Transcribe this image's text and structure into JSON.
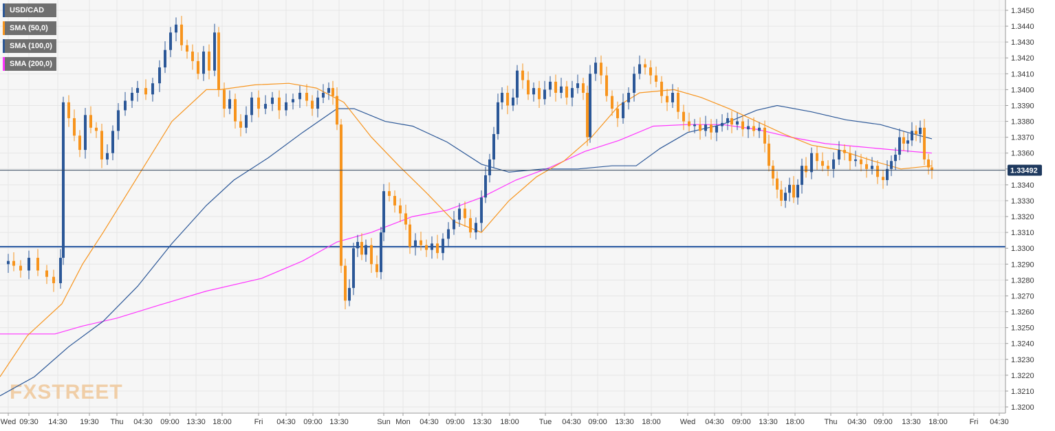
{
  "legend": {
    "items": [
      {
        "label": "USD/CAD",
        "color": "#2b5797"
      },
      {
        "label": "SMA (50,0)",
        "color": "#f7941d"
      },
      {
        "label": "SMA (100,0)",
        "color": "#2b5797"
      },
      {
        "label": "SMA (200,0)",
        "color": "#ff33ff"
      }
    ]
  },
  "watermark": {
    "part1": "FX",
    "part2": "STREET",
    "color": "#f0c89a"
  },
  "colors": {
    "up": "#2b5797",
    "down": "#f7941d",
    "grid": "#e6e6e6",
    "background": "#f6f6f6",
    "hline": "#1d4f9c"
  },
  "chart_data": {
    "type": "candlestick",
    "symbol": "USD/CAD",
    "ylim": [
      1.3195,
      1.3455
    ],
    "y_ticks": [
      "1.3450",
      "1.3440",
      "1.3430",
      "1.3420",
      "1.3410",
      "1.3400",
      "1.3390",
      "1.3380",
      "1.3370",
      "1.3360",
      "1.3350",
      "1.3340",
      "1.3330",
      "1.3320",
      "1.3310",
      "1.3300",
      "1.3290",
      "1.3280",
      "1.3270",
      "1.3260",
      "1.3250",
      "1.3240",
      "1.3230",
      "1.3220",
      "1.3210",
      "1.3200"
    ],
    "x_ticks": [
      "Wed",
      "09:30",
      "14:30",
      "19:30",
      "Thu",
      "04:30",
      "09:00",
      "13:30",
      "18:00",
      "Fri",
      "04:30",
      "09:00",
      "13:30",
      "Sun",
      "Mon",
      "04:30",
      "09:00",
      "13:30",
      "18:00",
      "Tue",
      "04:30",
      "09:00",
      "13:30",
      "18:00",
      "Wed",
      "04:30",
      "09:00",
      "13:30",
      "18:00",
      "Thu",
      "04:30",
      "09:00",
      "13:30",
      "18:00",
      "Fri",
      "04:30"
    ],
    "current_price": {
      "label": "1.33492",
      "value": 1.33492
    },
    "horizontal_line": 1.3301,
    "sma50": [
      [
        0,
        1.3219
      ],
      [
        40,
        1.3245
      ],
      [
        90,
        1.3265
      ],
      [
        120,
        1.329
      ],
      [
        150,
        1.331
      ],
      [
        200,
        1.3345
      ],
      [
        250,
        1.338
      ],
      [
        300,
        1.34
      ],
      [
        320,
        1.34
      ],
      [
        370,
        1.3403
      ],
      [
        420,
        1.3404
      ],
      [
        460,
        1.3401
      ],
      [
        500,
        1.3392
      ],
      [
        540,
        1.337
      ],
      [
        580,
        1.3352
      ],
      [
        620,
        1.3335
      ],
      [
        660,
        1.3317
      ],
      [
        700,
        1.331
      ],
      [
        740,
        1.333
      ],
      [
        780,
        1.3345
      ],
      [
        820,
        1.3355
      ],
      [
        860,
        1.337
      ],
      [
        900,
        1.339
      ],
      [
        930,
        1.3398
      ],
      [
        980,
        1.34
      ],
      [
        1020,
        1.3395
      ],
      [
        1060,
        1.3388
      ],
      [
        1100,
        1.338
      ],
      [
        1140,
        1.3372
      ],
      [
        1180,
        1.3365
      ],
      [
        1220,
        1.3362
      ],
      [
        1270,
        1.3355
      ],
      [
        1310,
        1.335
      ],
      [
        1355,
        1.3352
      ]
    ],
    "sma100": [
      [
        0,
        1.3207
      ],
      [
        50,
        1.3219
      ],
      [
        100,
        1.3238
      ],
      [
        150,
        1.3254
      ],
      [
        200,
        1.3276
      ],
      [
        250,
        1.3303
      ],
      [
        300,
        1.3327
      ],
      [
        340,
        1.3343
      ],
      [
        390,
        1.3357
      ],
      [
        440,
        1.3373
      ],
      [
        490,
        1.3388
      ],
      [
        515,
        1.3388
      ],
      [
        560,
        1.338
      ],
      [
        600,
        1.3377
      ],
      [
        650,
        1.3367
      ],
      [
        700,
        1.3353
      ],
      [
        740,
        1.3348
      ],
      [
        790,
        1.335
      ],
      [
        840,
        1.335
      ],
      [
        890,
        1.3352
      ],
      [
        925,
        1.3352
      ],
      [
        960,
        1.3363
      ],
      [
        1000,
        1.3373
      ],
      [
        1050,
        1.3378
      ],
      [
        1100,
        1.3387
      ],
      [
        1130,
        1.339
      ],
      [
        1180,
        1.3386
      ],
      [
        1230,
        1.3381
      ],
      [
        1280,
        1.3378
      ],
      [
        1320,
        1.3373
      ],
      [
        1355,
        1.3369
      ]
    ],
    "sma200": [
      [
        0,
        1.3246
      ],
      [
        80,
        1.3246
      ],
      [
        120,
        1.3251
      ],
      [
        170,
        1.3256
      ],
      [
        230,
        1.3264
      ],
      [
        300,
        1.3273
      ],
      [
        380,
        1.3281
      ],
      [
        440,
        1.3292
      ],
      [
        490,
        1.3304
      ],
      [
        540,
        1.331
      ],
      [
        600,
        1.332
      ],
      [
        650,
        1.3324
      ],
      [
        700,
        1.3332
      ],
      [
        750,
        1.3343
      ],
      [
        800,
        1.3351
      ],
      [
        850,
        1.3361
      ],
      [
        900,
        1.3368
      ],
      [
        950,
        1.3377
      ],
      [
        1000,
        1.3378
      ],
      [
        1050,
        1.3378
      ],
      [
        1100,
        1.3375
      ],
      [
        1150,
        1.337
      ],
      [
        1200,
        1.3366
      ],
      [
        1250,
        1.3364
      ],
      [
        1300,
        1.3362
      ],
      [
        1355,
        1.336
      ]
    ],
    "price": [
      [
        0,
        1.329
      ],
      [
        12,
        1.3292
      ],
      [
        20,
        1.3289
      ],
      [
        30,
        1.3286
      ],
      [
        42,
        1.3294
      ],
      [
        55,
        1.3286
      ],
      [
        68,
        1.3282
      ],
      [
        78,
        1.3278
      ],
      [
        88,
        1.3294
      ],
      [
        92,
        1.3392
      ],
      [
        100,
        1.3382
      ],
      [
        108,
        1.3371
      ],
      [
        116,
        1.3362
      ],
      [
        124,
        1.3384
      ],
      [
        132,
        1.3376
      ],
      [
        140,
        1.3374
      ],
      [
        148,
        1.3356
      ],
      [
        156,
        1.336
      ],
      [
        164,
        1.3374
      ],
      [
        172,
        1.3387
      ],
      [
        182,
        1.3393
      ],
      [
        192,
        1.3398
      ],
      [
        200,
        1.3401
      ],
      [
        212,
        1.3397
      ],
      [
        222,
        1.3404
      ],
      [
        232,
        1.3414
      ],
      [
        240,
        1.3425
      ],
      [
        248,
        1.3436
      ],
      [
        256,
        1.3441
      ],
      [
        264,
        1.3428
      ],
      [
        272,
        1.3424
      ],
      [
        280,
        1.3418
      ],
      [
        288,
        1.341
      ],
      [
        296,
        1.3424
      ],
      [
        304,
        1.3412
      ],
      [
        312,
        1.3436
      ],
      [
        318,
        1.34
      ],
      [
        326,
        1.3388
      ],
      [
        334,
        1.3394
      ],
      [
        342,
        1.338
      ],
      [
        350,
        1.3376
      ],
      [
        358,
        1.3384
      ],
      [
        366,
        1.3395
      ],
      [
        376,
        1.3388
      ],
      [
        386,
        1.3391
      ],
      [
        396,
        1.3395
      ],
      [
        406,
        1.3387
      ],
      [
        416,
        1.3392
      ],
      [
        426,
        1.3394
      ],
      [
        436,
        1.3398
      ],
      [
        446,
        1.3393
      ],
      [
        454,
        1.3388
      ],
      [
        462,
        1.3395
      ],
      [
        470,
        1.3398
      ],
      [
        478,
        1.3401
      ],
      [
        484,
        1.3396
      ],
      [
        490,
        1.3378
      ],
      [
        496,
        1.3289
      ],
      [
        502,
        1.3267
      ],
      [
        508,
        1.3275
      ],
      [
        514,
        1.33
      ],
      [
        520,
        1.3304
      ],
      [
        526,
        1.3296
      ],
      [
        532,
        1.3302
      ],
      [
        540,
        1.329
      ],
      [
        548,
        1.3285
      ],
      [
        554,
        1.331
      ],
      [
        558,
        1.3336
      ],
      [
        566,
        1.3333
      ],
      [
        574,
        1.3327
      ],
      [
        582,
        1.3322
      ],
      [
        590,
        1.3315
      ],
      [
        596,
        1.3301
      ],
      [
        604,
        1.3305
      ],
      [
        612,
        1.3302
      ],
      [
        620,
        1.3299
      ],
      [
        628,
        1.3303
      ],
      [
        636,
        1.3297
      ],
      [
        644,
        1.3306
      ],
      [
        652,
        1.3312
      ],
      [
        660,
        1.3318
      ],
      [
        668,
        1.3325
      ],
      [
        676,
        1.3319
      ],
      [
        684,
        1.331
      ],
      [
        692,
        1.3316
      ],
      [
        700,
        1.3332
      ],
      [
        706,
        1.3346
      ],
      [
        712,
        1.3356
      ],
      [
        718,
        1.3372
      ],
      [
        724,
        1.3392
      ],
      [
        730,
        1.3398
      ],
      [
        738,
        1.339
      ],
      [
        746,
        1.3395
      ],
      [
        752,
        1.3412
      ],
      [
        760,
        1.3406
      ],
      [
        768,
        1.3397
      ],
      [
        776,
        1.3401
      ],
      [
        784,
        1.3394
      ],
      [
        792,
        1.34
      ],
      [
        800,
        1.3405
      ],
      [
        808,
        1.3398
      ],
      [
        816,
        1.3402
      ],
      [
        824,
        1.3395
      ],
      [
        832,
        1.3401
      ],
      [
        840,
        1.3404
      ],
      [
        848,
        1.3398
      ],
      [
        854,
        1.337
      ],
      [
        858,
        1.341
      ],
      [
        866,
        1.3417
      ],
      [
        874,
        1.3409
      ],
      [
        882,
        1.3396
      ],
      [
        890,
        1.3388
      ],
      [
        898,
        1.3382
      ],
      [
        906,
        1.3392
      ],
      [
        914,
        1.3398
      ],
      [
        922,
        1.341
      ],
      [
        930,
        1.3416
      ],
      [
        938,
        1.3414
      ],
      [
        946,
        1.3409
      ],
      [
        954,
        1.3405
      ],
      [
        962,
        1.3396
      ],
      [
        970,
        1.3392
      ],
      [
        978,
        1.3398
      ],
      [
        986,
        1.3386
      ],
      [
        994,
        1.338
      ],
      [
        1002,
        1.3377
      ],
      [
        1010,
        1.3378
      ],
      [
        1018,
        1.3374
      ],
      [
        1026,
        1.3378
      ],
      [
        1034,
        1.3373
      ],
      [
        1042,
        1.3377
      ],
      [
        1050,
        1.3379
      ],
      [
        1058,
        1.3382
      ],
      [
        1064,
        1.3378
      ],
      [
        1072,
        1.338
      ],
      [
        1080,
        1.3375
      ],
      [
        1088,
        1.3377
      ],
      [
        1096,
        1.3374
      ],
      [
        1104,
        1.3376
      ],
      [
        1112,
        1.3366
      ],
      [
        1118,
        1.3352
      ],
      [
        1124,
        1.3344
      ],
      [
        1130,
        1.3337
      ],
      [
        1136,
        1.333
      ],
      [
        1142,
        1.3335
      ],
      [
        1148,
        1.334
      ],
      [
        1154,
        1.3332
      ],
      [
        1160,
        1.334
      ],
      [
        1166,
        1.3352
      ],
      [
        1172,
        1.3348
      ],
      [
        1180,
        1.336
      ],
      [
        1188,
        1.3355
      ],
      [
        1196,
        1.3352
      ],
      [
        1204,
        1.335
      ],
      [
        1212,
        1.3356
      ],
      [
        1220,
        1.3362
      ],
      [
        1228,
        1.336
      ],
      [
        1236,
        1.3355
      ],
      [
        1244,
        1.3356
      ],
      [
        1252,
        1.3353
      ],
      [
        1260,
        1.335
      ],
      [
        1268,
        1.3352
      ],
      [
        1276,
        1.3345
      ],
      [
        1284,
        1.3343
      ],
      [
        1290,
        1.335
      ],
      [
        1296,
        1.3355
      ],
      [
        1302,
        1.3359
      ],
      [
        1308,
        1.337
      ],
      [
        1314,
        1.3366
      ],
      [
        1320,
        1.3368
      ],
      [
        1326,
        1.3374
      ],
      [
        1332,
        1.3372
      ],
      [
        1338,
        1.3376
      ],
      [
        1344,
        1.3356
      ],
      [
        1350,
        1.3351
      ],
      [
        1355,
        1.33492
      ]
    ]
  }
}
